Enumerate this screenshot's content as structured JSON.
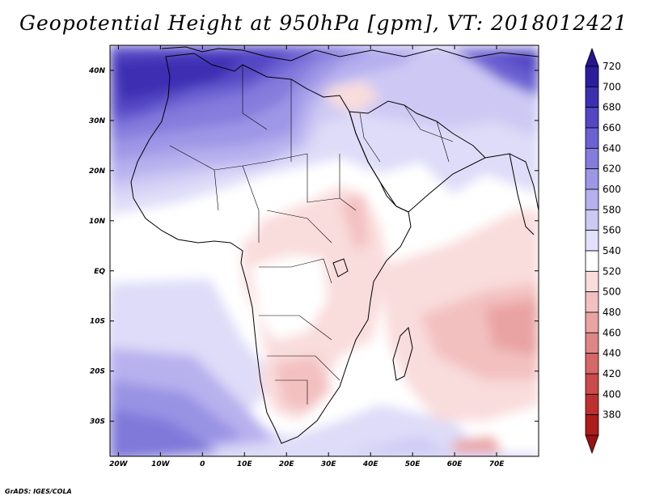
{
  "title": "Geopotential Height at 950hPa [gpm], VT: 2018012421",
  "footer": "GrADS: IGES/COLA",
  "map": {
    "lon_range": [
      -22,
      80
    ],
    "lat_range": [
      -37,
      45
    ],
    "lon_ticks": [
      {
        "value": -20,
        "label": "20W"
      },
      {
        "value": -10,
        "label": "10W"
      },
      {
        "value": 0,
        "label": "0"
      },
      {
        "value": 10,
        "label": "10E"
      },
      {
        "value": 20,
        "label": "20E"
      },
      {
        "value": 30,
        "label": "30E"
      },
      {
        "value": 40,
        "label": "40E"
      },
      {
        "value": 50,
        "label": "50E"
      },
      {
        "value": 60,
        "label": "60E"
      },
      {
        "value": 70,
        "label": "70E"
      }
    ],
    "lat_ticks": [
      {
        "value": 40,
        "label": "40N"
      },
      {
        "value": 30,
        "label": "30N"
      },
      {
        "value": 20,
        "label": "20N"
      },
      {
        "value": 10,
        "label": "10N"
      },
      {
        "value": 0,
        "label": "EQ"
      },
      {
        "value": -10,
        "label": "10S"
      },
      {
        "value": -20,
        "label": "20S"
      },
      {
        "value": -30,
        "label": "30S"
      }
    ]
  },
  "colorbar": {
    "levels": [
      {
        "label": "720",
        "color": "#2a1d9e"
      },
      {
        "label": "700",
        "color": "#3d2fb2"
      },
      {
        "label": "680",
        "color": "#5446c4"
      },
      {
        "label": "660",
        "color": "#6c60d2"
      },
      {
        "label": "640",
        "color": "#857bdd"
      },
      {
        "label": "620",
        "color": "#9e96e6"
      },
      {
        "label": "600",
        "color": "#b6b0ee"
      },
      {
        "label": "580",
        "color": "#cdc9f4"
      },
      {
        "label": "560",
        "color": "#e2e0fa"
      },
      {
        "label": "540",
        "color": "#ffffff"
      },
      {
        "label": "520",
        "color": "#f9dcdc"
      },
      {
        "label": "500",
        "color": "#f3c0c0"
      },
      {
        "label": "480",
        "color": "#eaa3a3"
      },
      {
        "label": "460",
        "color": "#e08585"
      },
      {
        "label": "440",
        "color": "#d66767"
      },
      {
        "label": "420",
        "color": "#cb4a4a"
      },
      {
        "label": "400",
        "color": "#be3030"
      },
      {
        "label": "380",
        "color": "#ae1c1c"
      }
    ],
    "top_color": "#251690",
    "bottom_color": "#9a1212"
  }
}
